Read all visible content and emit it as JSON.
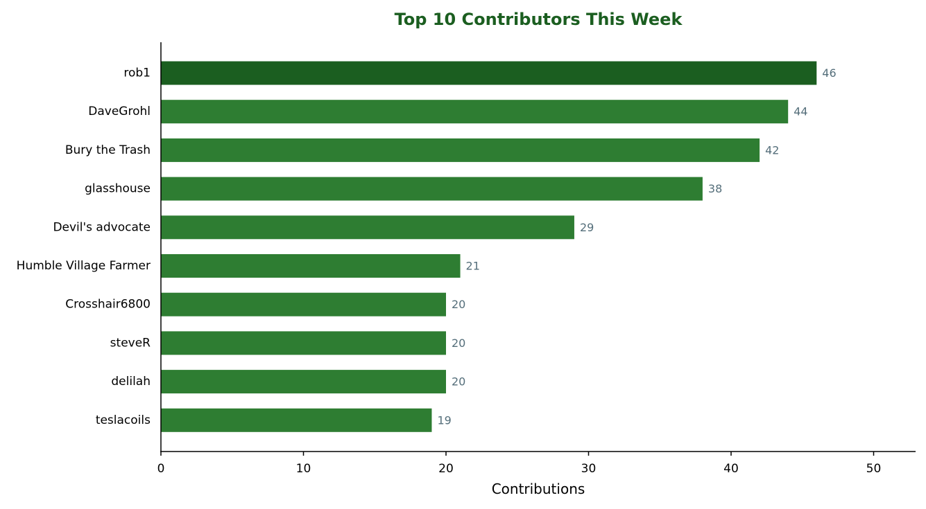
{
  "chart_data": {
    "type": "bar",
    "orientation": "horizontal",
    "title": "Top 10 Contributors This Week",
    "xlabel": "Contributions",
    "ylabel": "",
    "categories": [
      "rob1",
      "DaveGrohl",
      "Bury the Trash",
      "glasshouse",
      "Devil's advocate",
      "Humble Village Farmer",
      "Crosshair6800",
      "steveR",
      "delilah",
      "teslacoils"
    ],
    "values": [
      46,
      44,
      42,
      38,
      29,
      21,
      20,
      20,
      20,
      19
    ],
    "data_labels": [
      "46",
      "44",
      "42",
      "38",
      "29",
      "21",
      "20",
      "20",
      "20",
      "19"
    ],
    "xlim": [
      0,
      53
    ],
    "xticks": [
      0,
      10,
      20,
      30,
      40,
      50
    ],
    "xtick_labels": [
      "0",
      "10",
      "20",
      "30",
      "40",
      "50"
    ],
    "grid": false,
    "legend": "none",
    "highlight_index": 0
  },
  "colors": {
    "title": "#1b5e20",
    "bar": "#2e7d32",
    "bar_highlight": "#1b5e20",
    "data_label": "#546e7a",
    "axis": "#000000"
  }
}
